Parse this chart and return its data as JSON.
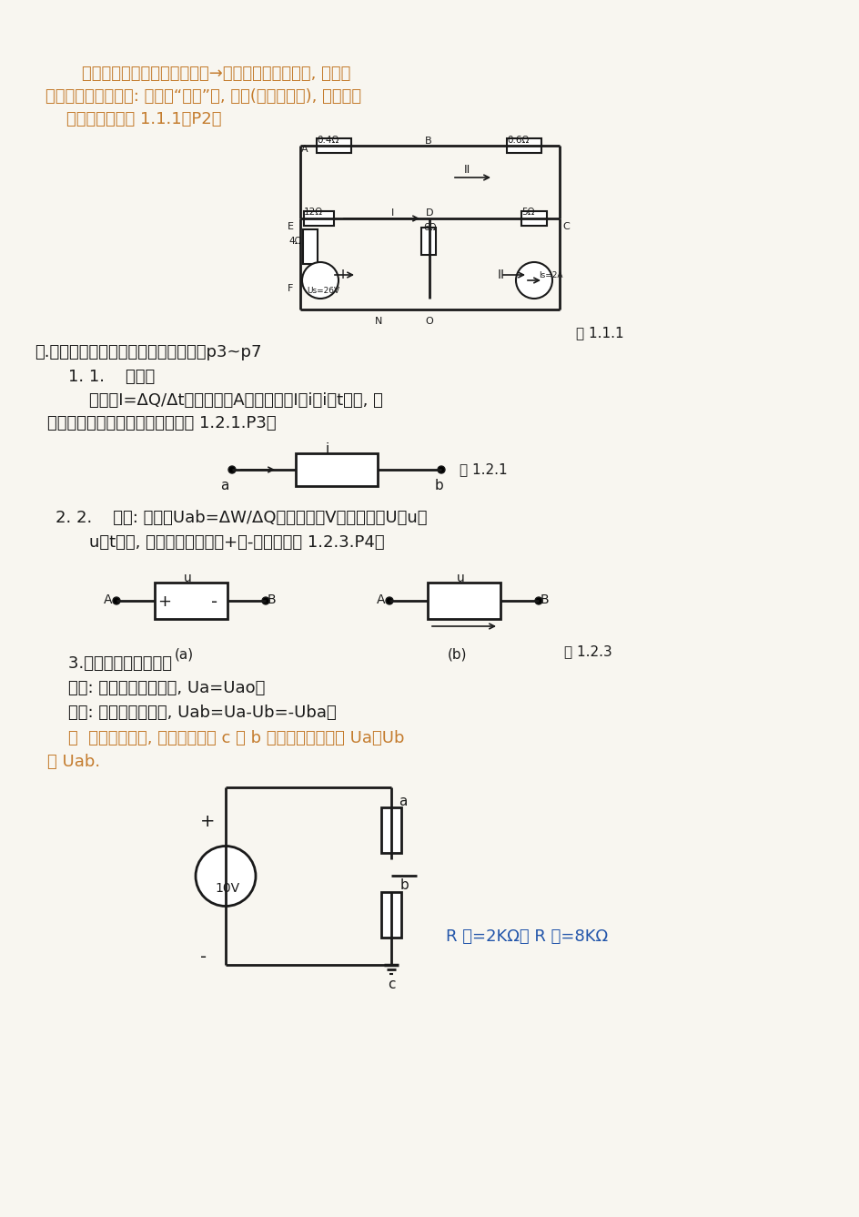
{
  "bg_color": "#f8f6f0",
  "orange": "#c47c2e",
  "blue": "#2255aa",
  "black": "#1a1a1a",
  "title1": "电路设计（电路所要实现功能→求解电路结构和参数, 多样）",
  "title2": "电路结构的相关名词: 支路（“串联”）, 节点(支路连接点), 回路及绕",
  "title3": "    行方向（参考图 1.1.1）P2。",
  "fig111_label": "图 1.1.1",
  "section1": "一.三个基本物理量电流、电压和功率：p3~p7",
  "sub1": "    1. 1.    电流：",
  "def1": "        定义（I=ΔQ/Δt）、单位（A）、字符（I、i、i（t））, 电",
  "def1b": "流的真实方向（正电荷）（参考图 1.2.1.P3）",
  "fig121_label": "图 1.2.1",
  "sub2_a": "    2. 2.    电压: 定义（Uab=ΔW/ΔQ）、单位（V）、字符（U、u、",
  "sub2_b": "        u（t））, 电压的真实极性（+、-）（参考图 1.2.3.P4）",
  "fig123_label": "图 1.2.3",
  "sec3_a": "    3.电压和电位的关系：",
  "sec3_b": "    电位: 节点对参考点电压, Ua=Uao；",
  "sec3_c": "    电压: 两片点间电位差, Uab=Ua-Ub=-Uba；",
  "sec3_d": "    例  电路如图所示, 试分别求出当 c 或 b 点为参考点时电位 Ua、Ub",
  "sec3_e": "和 Uab.",
  "resistor_label": "R 上=2KΩ， R 下=8KΩ"
}
